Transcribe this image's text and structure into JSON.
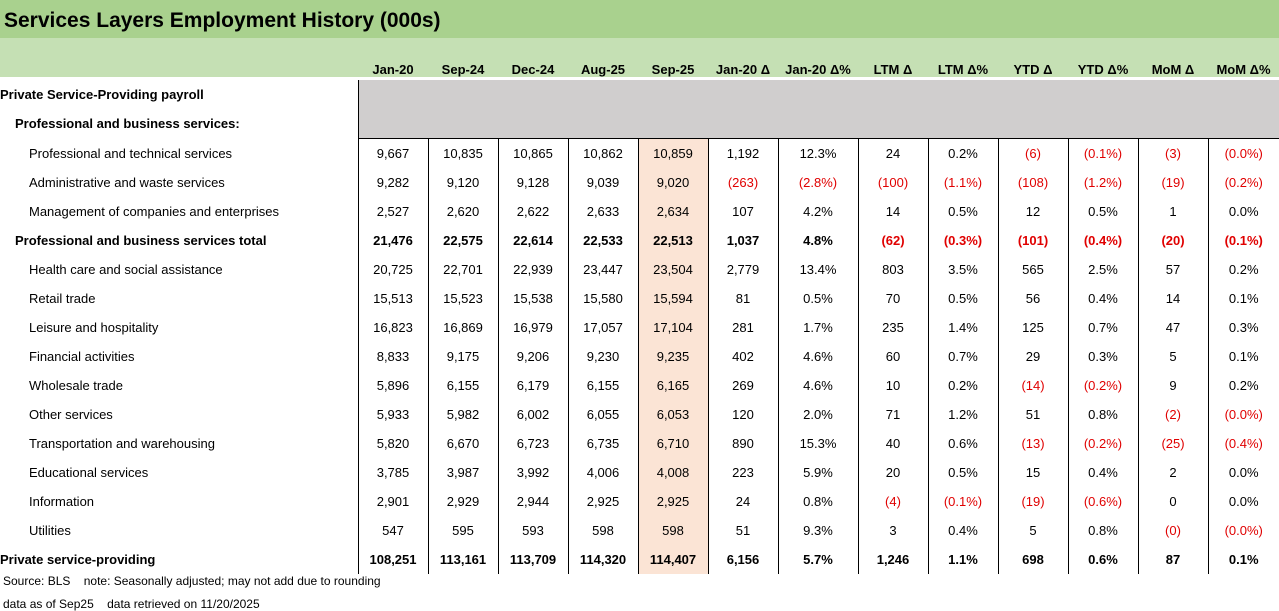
{
  "title": "Services Layers Employment History (000s)",
  "columns": [
    "Jan-20",
    "Sep-24",
    "Dec-24",
    "Aug-25",
    "Sep-25",
    "Jan-20 Δ",
    "Jan-20 Δ%",
    "LTM Δ",
    "LTM Δ%",
    "YTD Δ",
    "YTD Δ%",
    "MoM Δ",
    "MoM Δ%"
  ],
  "section_rows": [
    {
      "label": "Private Service-Providing payroll",
      "indent": 0
    },
    {
      "label": "Professional and business services:",
      "indent": 1
    }
  ],
  "rows": [
    {
      "label": "Professional and technical services",
      "indent": 2,
      "bold": false,
      "values": [
        "9,667",
        "10,835",
        "10,865",
        "10,862",
        "10,859",
        "1,192",
        "12.3%",
        "24",
        "0.2%",
        "(6)",
        "(0.1%)",
        "(3)",
        "(0.0%)"
      ]
    },
    {
      "label": "Administrative and waste services",
      "indent": 2,
      "bold": false,
      "values": [
        "9,282",
        "9,120",
        "9,128",
        "9,039",
        "9,020",
        "(263)",
        "(2.8%)",
        "(100)",
        "(1.1%)",
        "(108)",
        "(1.2%)",
        "(19)",
        "(0.2%)"
      ]
    },
    {
      "label": "Management of companies and enterprises",
      "indent": 2,
      "bold": false,
      "values": [
        "2,527",
        "2,620",
        "2,622",
        "2,633",
        "2,634",
        "107",
        "4.2%",
        "14",
        "0.5%",
        "12",
        "0.5%",
        "1",
        "0.0%"
      ]
    },
    {
      "label": "Professional and business services total",
      "indent": 1,
      "bold": true,
      "values": [
        "21,476",
        "22,575",
        "22,614",
        "22,533",
        "22,513",
        "1,037",
        "4.8%",
        "(62)",
        "(0.3%)",
        "(101)",
        "(0.4%)",
        "(20)",
        "(0.1%)"
      ]
    },
    {
      "label": "Health care and social assistance",
      "indent": 2,
      "bold": false,
      "values": [
        "20,725",
        "22,701",
        "22,939",
        "23,447",
        "23,504",
        "2,779",
        "13.4%",
        "803",
        "3.5%",
        "565",
        "2.5%",
        "57",
        "0.2%"
      ]
    },
    {
      "label": "Retail trade",
      "indent": 2,
      "bold": false,
      "values": [
        "15,513",
        "15,523",
        "15,538",
        "15,580",
        "15,594",
        "81",
        "0.5%",
        "70",
        "0.5%",
        "56",
        "0.4%",
        "14",
        "0.1%"
      ]
    },
    {
      "label": "Leisure and hospitality",
      "indent": 2,
      "bold": false,
      "values": [
        "16,823",
        "16,869",
        "16,979",
        "17,057",
        "17,104",
        "281",
        "1.7%",
        "235",
        "1.4%",
        "125",
        "0.7%",
        "47",
        "0.3%"
      ]
    },
    {
      "label": "Financial activities",
      "indent": 2,
      "bold": false,
      "values": [
        "8,833",
        "9,175",
        "9,206",
        "9,230",
        "9,235",
        "402",
        "4.6%",
        "60",
        "0.7%",
        "29",
        "0.3%",
        "5",
        "0.1%"
      ]
    },
    {
      "label": "Wholesale trade",
      "indent": 2,
      "bold": false,
      "values": [
        "5,896",
        "6,155",
        "6,179",
        "6,155",
        "6,165",
        "269",
        "4.6%",
        "10",
        "0.2%",
        "(14)",
        "(0.2%)",
        "9",
        "0.2%"
      ]
    },
    {
      "label": "Other services",
      "indent": 2,
      "bold": false,
      "values": [
        "5,933",
        "5,982",
        "6,002",
        "6,055",
        "6,053",
        "120",
        "2.0%",
        "71",
        "1.2%",
        "51",
        "0.8%",
        "(2)",
        "(0.0%)"
      ]
    },
    {
      "label": "Transportation and warehousing",
      "indent": 2,
      "bold": false,
      "values": [
        "5,820",
        "6,670",
        "6,723",
        "6,735",
        "6,710",
        "890",
        "15.3%",
        "40",
        "0.6%",
        "(13)",
        "(0.2%)",
        "(25)",
        "(0.4%)"
      ]
    },
    {
      "label": "Educational services",
      "indent": 2,
      "bold": false,
      "values": [
        "3,785",
        "3,987",
        "3,992",
        "4,006",
        "4,008",
        "223",
        "5.9%",
        "20",
        "0.5%",
        "15",
        "0.4%",
        "2",
        "0.0%"
      ]
    },
    {
      "label": "Information",
      "indent": 2,
      "bold": false,
      "values": [
        "2,901",
        "2,929",
        "2,944",
        "2,925",
        "2,925",
        "24",
        "0.8%",
        "(4)",
        "(0.1%)",
        "(19)",
        "(0.6%)",
        "0",
        "0.0%"
      ]
    },
    {
      "label": "Utilities",
      "indent": 2,
      "bold": false,
      "values": [
        "547",
        "595",
        "593",
        "598",
        "598",
        "51",
        "9.3%",
        "3",
        "0.4%",
        "5",
        "0.8%",
        "(0)",
        "(0.0%)"
      ]
    },
    {
      "label": "Private service-providing",
      "indent": 0,
      "bold": true,
      "values": [
        "108,251",
        "113,161",
        "113,709",
        "114,320",
        "114,407",
        "6,156",
        "5.7%",
        "1,246",
        "1.1%",
        "698",
        "0.6%",
        "87",
        "0.1%"
      ]
    }
  ],
  "footer": {
    "source": "Source: BLS",
    "note": "note: Seasonally adjusted; may not add due to rounding",
    "data_as_of": "data as of Sep25",
    "retrieved": "data retrieved on 11/20/2025"
  },
  "colors": {
    "title_bg": "#a9d18e",
    "header_bg": "#c5e0b4",
    "gray_fill": "#d0cece",
    "highlight_col": "#fbe4d5",
    "negative": "#e00000"
  }
}
